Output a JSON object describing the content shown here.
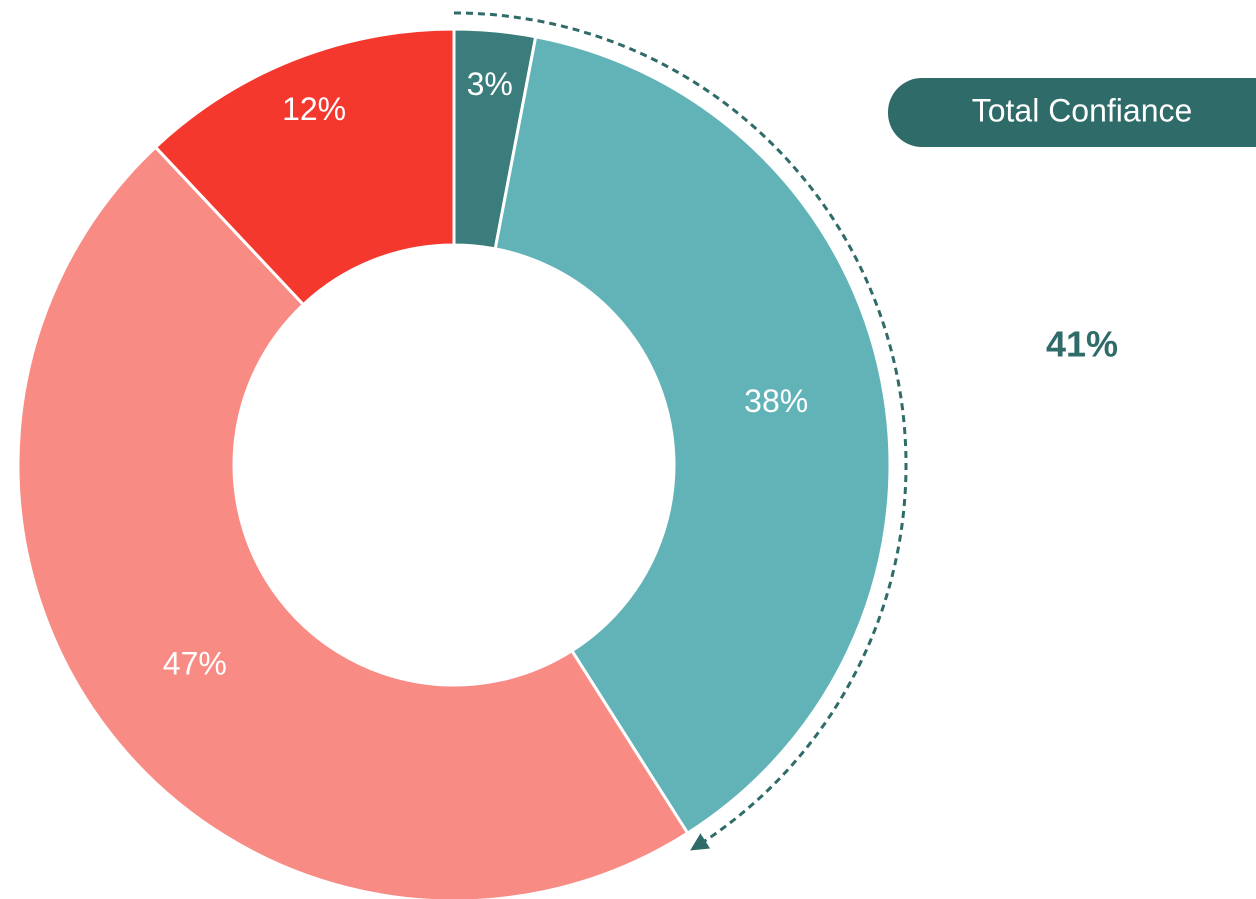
{
  "chart_data": {
    "type": "donut",
    "values": [
      3,
      38,
      47,
      12
    ],
    "value_labels": [
      "3%",
      "38%",
      "47%",
      "12%"
    ],
    "colors": [
      "#3a7d7c",
      "#62b3b7",
      "#f88b84",
      "#f5382e"
    ],
    "annotation": {
      "title": "Total Confiance",
      "value": 41,
      "label": "41%",
      "color": "#2f6b68"
    }
  }
}
